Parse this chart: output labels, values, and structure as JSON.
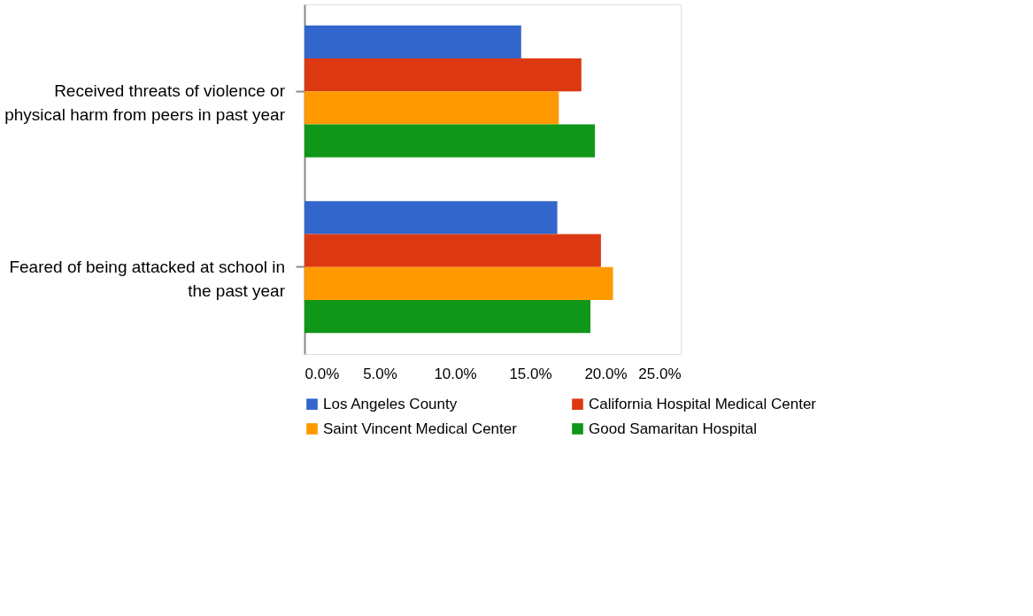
{
  "chart_data": {
    "type": "bar",
    "orientation": "horizontal",
    "categories": [
      "Received threats of violence or physical harm from peers in past year",
      "Feared of being attacked at school in the past year"
    ],
    "series": [
      {
        "name": "Los Angeles County",
        "color": "#3366cc",
        "values": [
          14.4,
          16.8
        ]
      },
      {
        "name": "California Hospital Medical Center",
        "color": "#dc3912",
        "values": [
          18.4,
          19.7
        ]
      },
      {
        "name": "Saint Vincent Medical Center",
        "color": "#ff9900",
        "values": [
          16.9,
          20.5
        ]
      },
      {
        "name": "Good Samaritan Hospital",
        "color": "#109618",
        "values": [
          19.3,
          19.0
        ]
      }
    ],
    "xlim": [
      0,
      25
    ],
    "xticks": [
      {
        "value": 0,
        "label": "0.0%"
      },
      {
        "value": 5,
        "label": "5.0%"
      },
      {
        "value": 10,
        "label": "10.0%"
      },
      {
        "value": 15,
        "label": "15.0%"
      },
      {
        "value": 20,
        "label": "20.0%"
      },
      {
        "value": 25,
        "label": "25.0%"
      }
    ],
    "legend": "bottom",
    "grid": false
  }
}
